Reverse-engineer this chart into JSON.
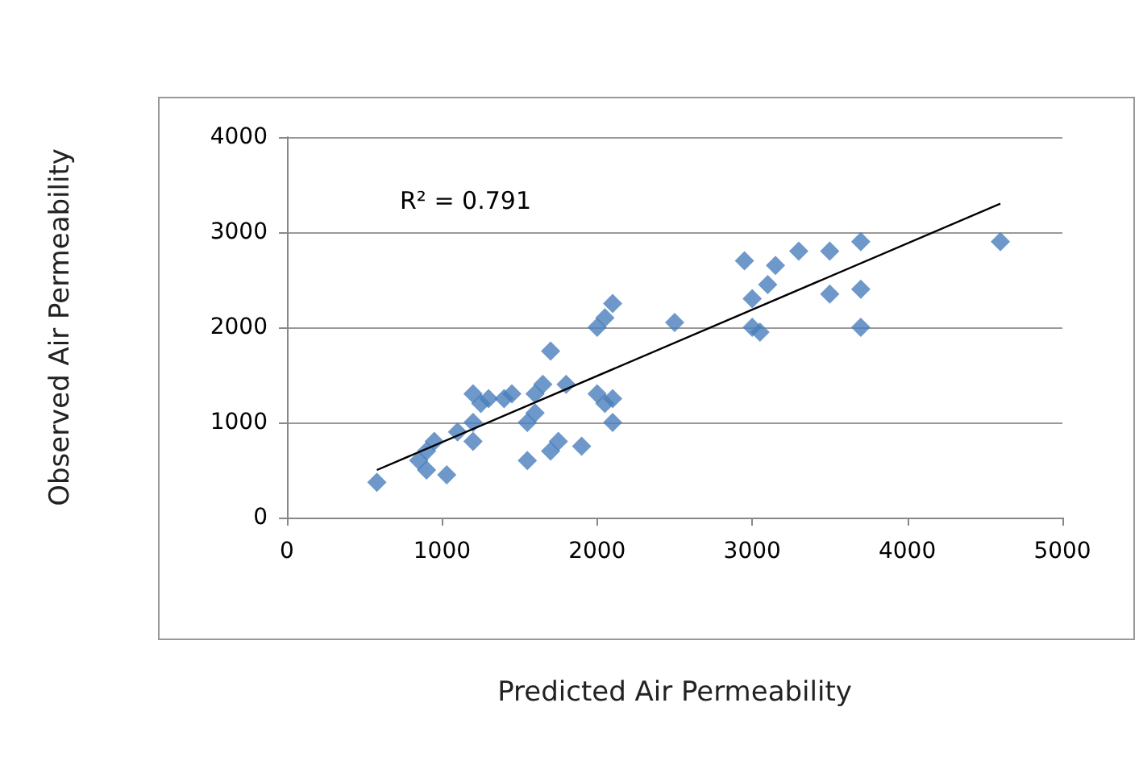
{
  "chart_data": {
    "type": "scatter",
    "xlabel": "Predicted Air Permeability",
    "ylabel": "Observed Air Permeability",
    "annotations": [
      "R² = 0.791"
    ],
    "xlim": [
      0,
      5000
    ],
    "xticks": [
      0,
      1000,
      2000,
      3000,
      4000,
      5000
    ],
    "ylim": [
      0,
      4000
    ],
    "yticks": [
      0,
      1000,
      2000,
      3000,
      4000
    ],
    "grid": "y",
    "marker": "diamond",
    "series": [
      {
        "color": "#4a7ebb",
        "x": [
          580,
          850,
          900,
          900,
          950,
          1030,
          1100,
          1200,
          1200,
          1200,
          1250,
          1300,
          1400,
          1450,
          1550,
          1550,
          1600,
          1600,
          1650,
          1700,
          1700,
          1750,
          1900,
          1800,
          2000,
          2000,
          2050,
          2100,
          2050,
          2100,
          2100,
          2500,
          2950,
          3000,
          3000,
          3050,
          3100,
          3150,
          3300,
          3500,
          3500,
          3700,
          3700,
          3700,
          4600
        ],
        "values": [
          370,
          600,
          500,
          700,
          800,
          450,
          900,
          800,
          1000,
          1300,
          1200,
          1250,
          1250,
          1300,
          600,
          1000,
          1100,
          1300,
          1400,
          700,
          1750,
          800,
          750,
          1400,
          1300,
          2000,
          2100,
          2250,
          1200,
          1000,
          1250,
          2050,
          2700,
          2000,
          2300,
          1950,
          2450,
          2650,
          2800,
          2800,
          2350,
          2900,
          2000,
          2400,
          2900
        ]
      },
      {
        "type": "line",
        "color": "#000000",
        "marker": "none",
        "x": [
          580,
          4600
        ],
        "values": [
          500,
          3300
        ]
      }
    ]
  }
}
